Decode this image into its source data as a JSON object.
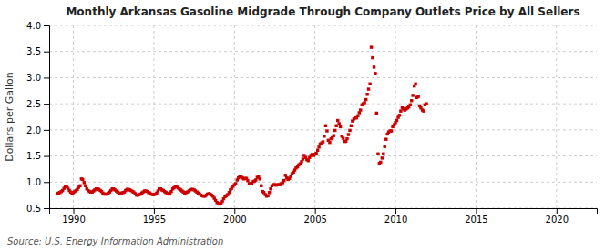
{
  "chart_data": {
    "type": "scatter",
    "title": "Monthly Arkansas Gasoline Midgrade Through Company Outlets Price by All Sellers",
    "ylabel": "Dollars per Gallon",
    "source": "Source: U.S. Energy Information Administration",
    "color": "#cc0000",
    "marker": "square",
    "grid": true,
    "xlim": [
      1988.5,
      2022.5
    ],
    "ylim": [
      0.5,
      4.0
    ],
    "xticks": [
      1990,
      1995,
      2000,
      2005,
      2010,
      2015,
      2020
    ],
    "yticks": [
      0.5,
      {
        "value": 1.0,
        "label": "1.0"
      },
      1.5,
      {
        "value": 2.0,
        "label": "2.0"
      },
      2.5,
      {
        "value": 3.0,
        "label": "3.0"
      },
      3.5,
      {
        "value": 4.0,
        "label": "4.0"
      }
    ],
    "x": [
      1989.0,
      1989.08,
      1989.17,
      1989.25,
      1989.33,
      1989.42,
      1989.5,
      1989.58,
      1989.67,
      1989.75,
      1989.83,
      1989.92,
      1990.0,
      1990.08,
      1990.17,
      1990.25,
      1990.33,
      1990.42,
      1990.5,
      1990.58,
      1990.67,
      1990.75,
      1990.83,
      1990.92,
      1991.0,
      1991.08,
      1991.17,
      1991.25,
      1991.33,
      1991.42,
      1991.5,
      1991.58,
      1991.67,
      1991.75,
      1991.83,
      1991.92,
      1992.0,
      1992.08,
      1992.17,
      1992.25,
      1992.33,
      1992.42,
      1992.5,
      1992.58,
      1992.67,
      1992.75,
      1992.83,
      1992.92,
      1993.0,
      1993.08,
      1993.17,
      1993.25,
      1993.33,
      1993.42,
      1993.5,
      1993.58,
      1993.67,
      1993.75,
      1993.83,
      1993.92,
      1994.0,
      1994.08,
      1994.17,
      1994.25,
      1994.33,
      1994.42,
      1994.5,
      1994.58,
      1994.67,
      1994.75,
      1994.83,
      1994.92,
      1995.0,
      1995.08,
      1995.17,
      1995.25,
      1995.33,
      1995.42,
      1995.5,
      1995.58,
      1995.67,
      1995.75,
      1995.83,
      1995.92,
      1996.0,
      1996.08,
      1996.17,
      1996.25,
      1996.33,
      1996.42,
      1996.5,
      1996.58,
      1996.67,
      1996.75,
      1996.83,
      1996.92,
      1997.0,
      1997.08,
      1997.17,
      1997.25,
      1997.33,
      1997.42,
      1997.5,
      1997.58,
      1997.67,
      1997.75,
      1997.83,
      1997.92,
      1998.0,
      1998.08,
      1998.17,
      1998.25,
      1998.33,
      1998.42,
      1998.5,
      1998.58,
      1998.67,
      1998.75,
      1998.83,
      1998.92,
      1999.0,
      1999.08,
      1999.17,
      1999.25,
      1999.33,
      1999.42,
      1999.5,
      1999.58,
      1999.67,
      1999.75,
      1999.83,
      1999.92,
      2000.0,
      2000.08,
      2000.17,
      2000.25,
      2000.33,
      2000.42,
      2000.5,
      2000.58,
      2000.67,
      2000.75,
      2000.83,
      2000.92,
      2001.0,
      2001.08,
      2001.17,
      2001.25,
      2001.33,
      2001.42,
      2001.5,
      2001.58,
      2001.67,
      2001.75,
      2001.83,
      2001.92,
      2002.0,
      2002.08,
      2002.17,
      2002.25,
      2002.33,
      2002.42,
      2002.5,
      2002.58,
      2002.67,
      2002.75,
      2002.83,
      2002.92,
      2003.0,
      2003.08,
      2003.17,
      2003.25,
      2003.33,
      2003.42,
      2003.5,
      2003.58,
      2003.67,
      2003.75,
      2003.83,
      2003.92,
      2004.0,
      2004.08,
      2004.17,
      2004.25,
      2004.33,
      2004.42,
      2004.5,
      2004.58,
      2004.67,
      2004.75,
      2004.83,
      2004.92,
      2005.0,
      2005.08,
      2005.17,
      2005.25,
      2005.33,
      2005.42,
      2005.5,
      2005.58,
      2005.67,
      2005.75,
      2005.83,
      2005.92,
      2006.0,
      2006.08,
      2006.17,
      2006.25,
      2006.33,
      2006.42,
      2006.5,
      2006.58,
      2006.67,
      2006.75,
      2006.83,
      2006.92,
      2007.0,
      2007.08,
      2007.17,
      2007.25,
      2007.33,
      2007.42,
      2007.5,
      2007.58,
      2007.67,
      2007.75,
      2007.83,
      2007.92,
      2008.0,
      2008.08,
      2008.17,
      2008.25,
      2008.33,
      2008.42,
      2008.5,
      2008.58,
      2008.67,
      2008.75,
      2008.83,
      2008.92,
      2009.0,
      2009.08,
      2009.17,
      2009.25,
      2009.33,
      2009.42,
      2009.5,
      2009.58,
      2009.67,
      2009.75,
      2009.83,
      2009.92,
      2010.0,
      2010.08,
      2010.17,
      2010.25,
      2010.33,
      2010.42,
      2010.5,
      2010.58,
      2010.67,
      2010.75,
      2010.83,
      2010.92,
      2011.0,
      2011.08,
      2011.17,
      2011.25,
      2011.33,
      2011.42,
      2011.5,
      2011.58,
      2011.67,
      2011.75,
      2011.83,
      2011.92
    ],
    "values": [
      0.78,
      0.79,
      0.8,
      0.82,
      0.84,
      0.88,
      0.91,
      0.92,
      0.88,
      0.84,
      0.81,
      0.79,
      0.8,
      0.82,
      0.84,
      0.86,
      0.9,
      0.93,
      1.06,
      1.05,
      0.99,
      0.93,
      0.87,
      0.84,
      0.82,
      0.81,
      0.81,
      0.83,
      0.85,
      0.87,
      0.87,
      0.86,
      0.84,
      0.82,
      0.79,
      0.77,
      0.77,
      0.77,
      0.79,
      0.81,
      0.84,
      0.87,
      0.87,
      0.85,
      0.83,
      0.81,
      0.79,
      0.78,
      0.79,
      0.8,
      0.81,
      0.84,
      0.86,
      0.86,
      0.85,
      0.84,
      0.82,
      0.81,
      0.78,
      0.75,
      0.75,
      0.76,
      0.77,
      0.79,
      0.81,
      0.83,
      0.83,
      0.82,
      0.8,
      0.79,
      0.77,
      0.76,
      0.76,
      0.77,
      0.79,
      0.83,
      0.87,
      0.87,
      0.85,
      0.84,
      0.82,
      0.8,
      0.78,
      0.77,
      0.79,
      0.82,
      0.87,
      0.89,
      0.91,
      0.91,
      0.89,
      0.87,
      0.85,
      0.83,
      0.81,
      0.79,
      0.8,
      0.81,
      0.83,
      0.85,
      0.86,
      0.86,
      0.85,
      0.83,
      0.81,
      0.79,
      0.77,
      0.75,
      0.74,
      0.73,
      0.73,
      0.75,
      0.77,
      0.78,
      0.77,
      0.75,
      0.73,
      0.69,
      0.65,
      0.61,
      0.59,
      0.58,
      0.59,
      0.63,
      0.68,
      0.72,
      0.74,
      0.76,
      0.8,
      0.85,
      0.88,
      0.92,
      0.95,
      0.97,
      1.04,
      1.08,
      1.1,
      1.11,
      1.08,
      1.06,
      1.07,
      1.07,
      1.03,
      0.97,
      0.97,
      0.97,
      1.01,
      1.02,
      1.04,
      1.09,
      1.11,
      1.06,
      0.93,
      0.82,
      0.8,
      0.76,
      0.73,
      0.74,
      0.8,
      0.87,
      0.93,
      0.95,
      0.95,
      0.94,
      0.95,
      0.95,
      0.95,
      0.97,
      0.99,
      1.03,
      1.13,
      1.08,
      1.05,
      1.07,
      1.11,
      1.16,
      1.19,
      1.23,
      1.27,
      1.29,
      1.33,
      1.35,
      1.39,
      1.44,
      1.51,
      1.47,
      1.43,
      1.41,
      1.47,
      1.51,
      1.53,
      1.51,
      1.53,
      1.55,
      1.61,
      1.67,
      1.73,
      1.75,
      1.77,
      1.88,
      2.08,
      1.98,
      1.8,
      1.76,
      1.83,
      1.85,
      1.89,
      1.99,
      2.08,
      2.18,
      2.12,
      2.06,
      1.88,
      1.84,
      1.78,
      1.78,
      1.83,
      1.91,
      1.99,
      2.08,
      2.17,
      2.21,
      2.23,
      2.23,
      2.27,
      2.33,
      2.38,
      2.48,
      2.5,
      2.52,
      2.58,
      2.68,
      2.78,
      2.88,
      3.58,
      3.38,
      3.2,
      3.08,
      2.32,
      1.54,
      1.36,
      1.38,
      1.46,
      1.54,
      1.68,
      1.82,
      1.92,
      1.96,
      1.98,
      1.98,
      2.06,
      2.1,
      2.14,
      2.18,
      2.24,
      2.28,
      2.36,
      2.42,
      2.4,
      2.38,
      2.4,
      2.42,
      2.44,
      2.48,
      2.56,
      2.66,
      2.84,
      2.88,
      2.62,
      2.64,
      2.46,
      2.42,
      2.38,
      2.36,
      2.48,
      2.5
    ]
  }
}
